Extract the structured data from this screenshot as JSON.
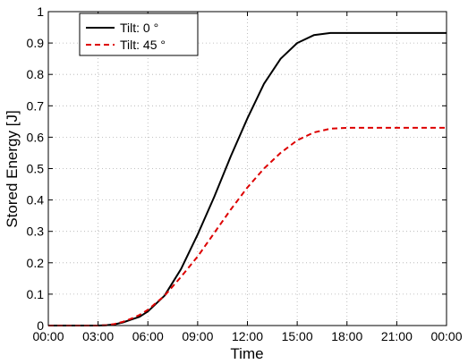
{
  "chart_data": {
    "type": "line",
    "title": "",
    "xlabel": "Time",
    "ylabel": "Stored Energy [J]",
    "xlim": [
      0,
      24
    ],
    "ylim": [
      0,
      1
    ],
    "x_ticks": [
      0,
      3,
      6,
      9,
      12,
      15,
      18,
      21,
      24
    ],
    "x_tick_labels": [
      "00:00",
      "03:00",
      "06:00",
      "09:00",
      "12:00",
      "15:00",
      "18:00",
      "21:00",
      "00:00"
    ],
    "y_ticks": [
      0,
      0.1,
      0.2,
      0.3,
      0.4,
      0.5,
      0.6,
      0.7,
      0.8,
      0.9,
      1
    ],
    "y_tick_labels": [
      "0",
      "0.1",
      "0.2",
      "0.3",
      "0.4",
      "0.5",
      "0.6",
      "0.7",
      "0.8",
      "0.9",
      "1"
    ],
    "grid": true,
    "legend_position": "top-left",
    "series": [
      {
        "name": "Tilt: 0 °",
        "color": "#000000",
        "style": "solid",
        "x": [
          0,
          1,
          2,
          3,
          3.5,
          4,
          4.5,
          5,
          5.5,
          6,
          7,
          8,
          9,
          10,
          11,
          12,
          13,
          14,
          15,
          16,
          17,
          18,
          19,
          20,
          21,
          22,
          23,
          24
        ],
        "y": [
          0,
          0,
          0,
          0,
          0.001,
          0.004,
          0.01,
          0.019,
          0.028,
          0.045,
          0.095,
          0.18,
          0.29,
          0.41,
          0.54,
          0.66,
          0.77,
          0.85,
          0.9,
          0.925,
          0.932,
          0.932,
          0.932,
          0.932,
          0.932,
          0.932,
          0.932,
          0.932
        ]
      },
      {
        "name": "Tilt: 45 °",
        "color": "#dd0000",
        "style": "dashed",
        "x": [
          0,
          1,
          2,
          3,
          3.5,
          4,
          4.5,
          5,
          5.5,
          6,
          7,
          8,
          9,
          10,
          11,
          12,
          13,
          14,
          15,
          16,
          17,
          18,
          19,
          20,
          21,
          22,
          23,
          24
        ],
        "y": [
          0,
          0,
          0,
          0,
          0.001,
          0.005,
          0.012,
          0.022,
          0.034,
          0.05,
          0.095,
          0.155,
          0.22,
          0.295,
          0.37,
          0.44,
          0.5,
          0.55,
          0.59,
          0.615,
          0.627,
          0.63,
          0.63,
          0.63,
          0.63,
          0.63,
          0.63,
          0.63
        ]
      }
    ]
  }
}
